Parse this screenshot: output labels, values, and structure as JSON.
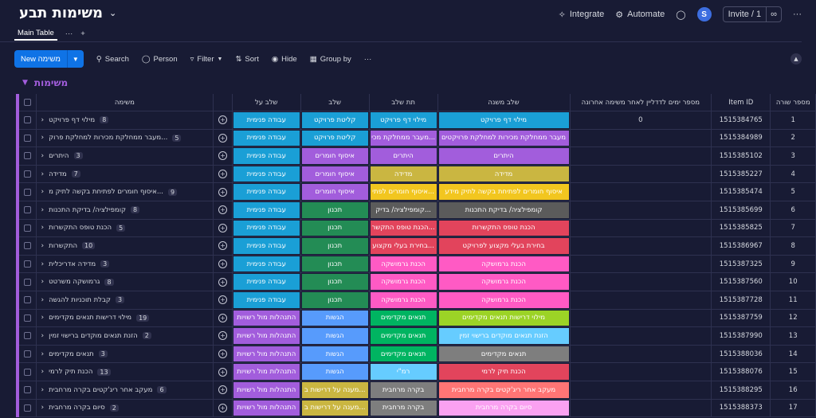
{
  "board": {
    "title": "משימות תבע"
  },
  "top": {
    "integrate": "Integrate",
    "automate": "Automate",
    "avatar": "S",
    "invite": "Invite / 1"
  },
  "tabs": {
    "main": "Main Table",
    "more": "···",
    "add": "+"
  },
  "toolbar": {
    "new_label": "New משימה",
    "search": "Search",
    "person": "Person",
    "filter": "Filter",
    "sort": "Sort",
    "hide": "Hide",
    "group_by": "Group by",
    "more": "···"
  },
  "group": {
    "title": "משימות"
  },
  "columns": {
    "name": "משימה",
    "stage": "שלב על",
    "sub": "שלב",
    "step": "תת שלב",
    "phase": "שלב משנה",
    "days": "מספר ימים לדדליין לאחר משימה אחרונה",
    "id": "Item ID",
    "num": "מספר שורה"
  },
  "colors": {
    "blue": "#1a9fd6",
    "purple": "#a25ddc",
    "green": "#238c55",
    "gray": "#5b5b5b",
    "lightgreen": "#00b461",
    "yellow": "#f2c61f",
    "pink": "#ff5ac4",
    "red": "#e2445c",
    "olive": "#cab641"
  },
  "rows": [
    {
      "name": "מילוי דף פרויקט",
      "count": "8",
      "stage": "עבודה פנימית",
      "sub": "קליטת פרויקט",
      "step": "מילוי דף פרויקט",
      "phase": "מילוי דף פרויקט",
      "days": "0",
      "id": "1515384765",
      "num": "1"
    },
    {
      "name": "מעבר ממחלקת מכירות למחלקת פרוק...",
      "count": "5",
      "stage": "עבודה פנימית",
      "sub": "קליטת פרויקט",
      "step": "מעבר ממחלקת מכי...",
      "phase": "מעבר ממחלקת מכירות למחלקת פרויקטים",
      "days": "",
      "id": "1515384989",
      "num": "2"
    },
    {
      "name": "היתרים",
      "count": "3",
      "stage": "עבודה פנימית",
      "sub": "איסוף חומרים",
      "step": "היתרים",
      "phase": "היתרים",
      "days": "",
      "id": "1515385102",
      "num": "3"
    },
    {
      "name": "מדידה",
      "count": "7",
      "stage": "עבודה פנימית",
      "sub": "איסוף חומרים",
      "step": "מדידה",
      "phase": "מדידה",
      "days": "",
      "id": "1515385227",
      "num": "4"
    },
    {
      "name": "איסוף חומרים לפתיחת בקשה לתיק מ...",
      "count": "9",
      "stage": "עבודה פנימית",
      "sub": "איסוף חומרים",
      "step": "איסוף חומרים לפתי...",
      "phase": "איסוף חומרים לפתיחת בקשה לתיק מידע",
      "days": "",
      "id": "1515385474",
      "num": "5"
    },
    {
      "name": "קומפילציה/ בדיקת התכנות",
      "count": "8",
      "stage": "עבודה פנימית",
      "sub": "תכנון",
      "step": "קומפילציה/ בדיק...",
      "phase": "קומפילציה/ בדיקת התכנות",
      "days": "",
      "id": "1515385699",
      "num": "6"
    },
    {
      "name": "הכנת טופס התקשרות",
      "count": "5",
      "stage": "עבודה פנימית",
      "sub": "תכנון",
      "step": "הכנת טופס התקשר...",
      "phase": "הכנת טופס התקשרות",
      "days": "",
      "id": "1515385825",
      "num": "7"
    },
    {
      "name": "התקשרות",
      "count": "10",
      "stage": "עבודה פנימית",
      "sub": "תכנון",
      "step": "בחירת בעלי מקצוע...",
      "phase": "בחירת בעלי מקצוע לפרויקט",
      "days": "",
      "id": "1515386967",
      "num": "8"
    },
    {
      "name": "מדידה אדריכלית",
      "count": "3",
      "stage": "עבודה פנימית",
      "sub": "תכנון",
      "step": "הכנת גרמושקה",
      "phase": "הכנת גרמושקה",
      "days": "",
      "id": "1515387325",
      "num": "9"
    },
    {
      "name": "גרמושקה משרטט",
      "count": "8",
      "stage": "עבודה פנימית",
      "sub": "תכנון",
      "step": "הכנת גרמושקה",
      "phase": "הכנת גרמושקה",
      "days": "",
      "id": "1515387560",
      "num": "10"
    },
    {
      "name": "קבלת תוכניות להגשה",
      "count": "3",
      "stage": "עבודה פנימית",
      "sub": "תכנון",
      "step": "הכנת גרמושקה",
      "phase": "הכנת גרמושקה",
      "days": "",
      "id": "1515387728",
      "num": "11"
    },
    {
      "name": "מילוי דרישות תנאים מקדימים",
      "count": "19",
      "stage": "התנהלות מול רשויות",
      "sub": "הגשות",
      "step": "תנאים מקדימים",
      "phase": "מילוי דרישות תנאים מקדימים",
      "days": "",
      "id": "1515387759",
      "num": "12"
    },
    {
      "name": "הזנת תנאים מוקדים ברישוי זמין",
      "count": "2",
      "stage": "התנהלות מול רשויות",
      "sub": "הגשות",
      "step": "תנאים מקדימים",
      "phase": "הזנת תנאים מוקדים ברישוי זמין",
      "days": "",
      "id": "1515387990",
      "num": "13"
    },
    {
      "name": "תנאים מקדימים",
      "count": "3",
      "stage": "התנהלות מול רשויות",
      "sub": "הגשות",
      "step": "תנאים מקדימים",
      "phase": "תנאים מקדימים",
      "days": "",
      "id": "1515388036",
      "num": "14"
    },
    {
      "name": "הכנת תיק לרמי",
      "count": "13",
      "stage": "התנהלות מול רשויות",
      "sub": "הגשות",
      "step": "רמ\"י",
      "phase": "הכנת תיק לרמי",
      "days": "",
      "id": "1515388076",
      "num": "15"
    },
    {
      "name": "מעקב אחר ריג'קטים בקרה מרחבית",
      "count": "6",
      "stage": "התנהלות מול רשויות",
      "sub": "מענה על דרישות ב...",
      "step": "בקרה מרחבית",
      "phase": "מעקב אחר ריג'קטים בקרה מרחבית",
      "days": "",
      "id": "1515388295",
      "num": "16"
    },
    {
      "name": "סיום בקרה מרחבית",
      "count": "2",
      "stage": "התנהלות מול רשויות",
      "sub": "מענה על דרישות ב...",
      "step": "בקרה מרחבית",
      "phase": "סיום בקרה מרחבית",
      "days": "",
      "id": "1515388373",
      "num": "17"
    }
  ]
}
